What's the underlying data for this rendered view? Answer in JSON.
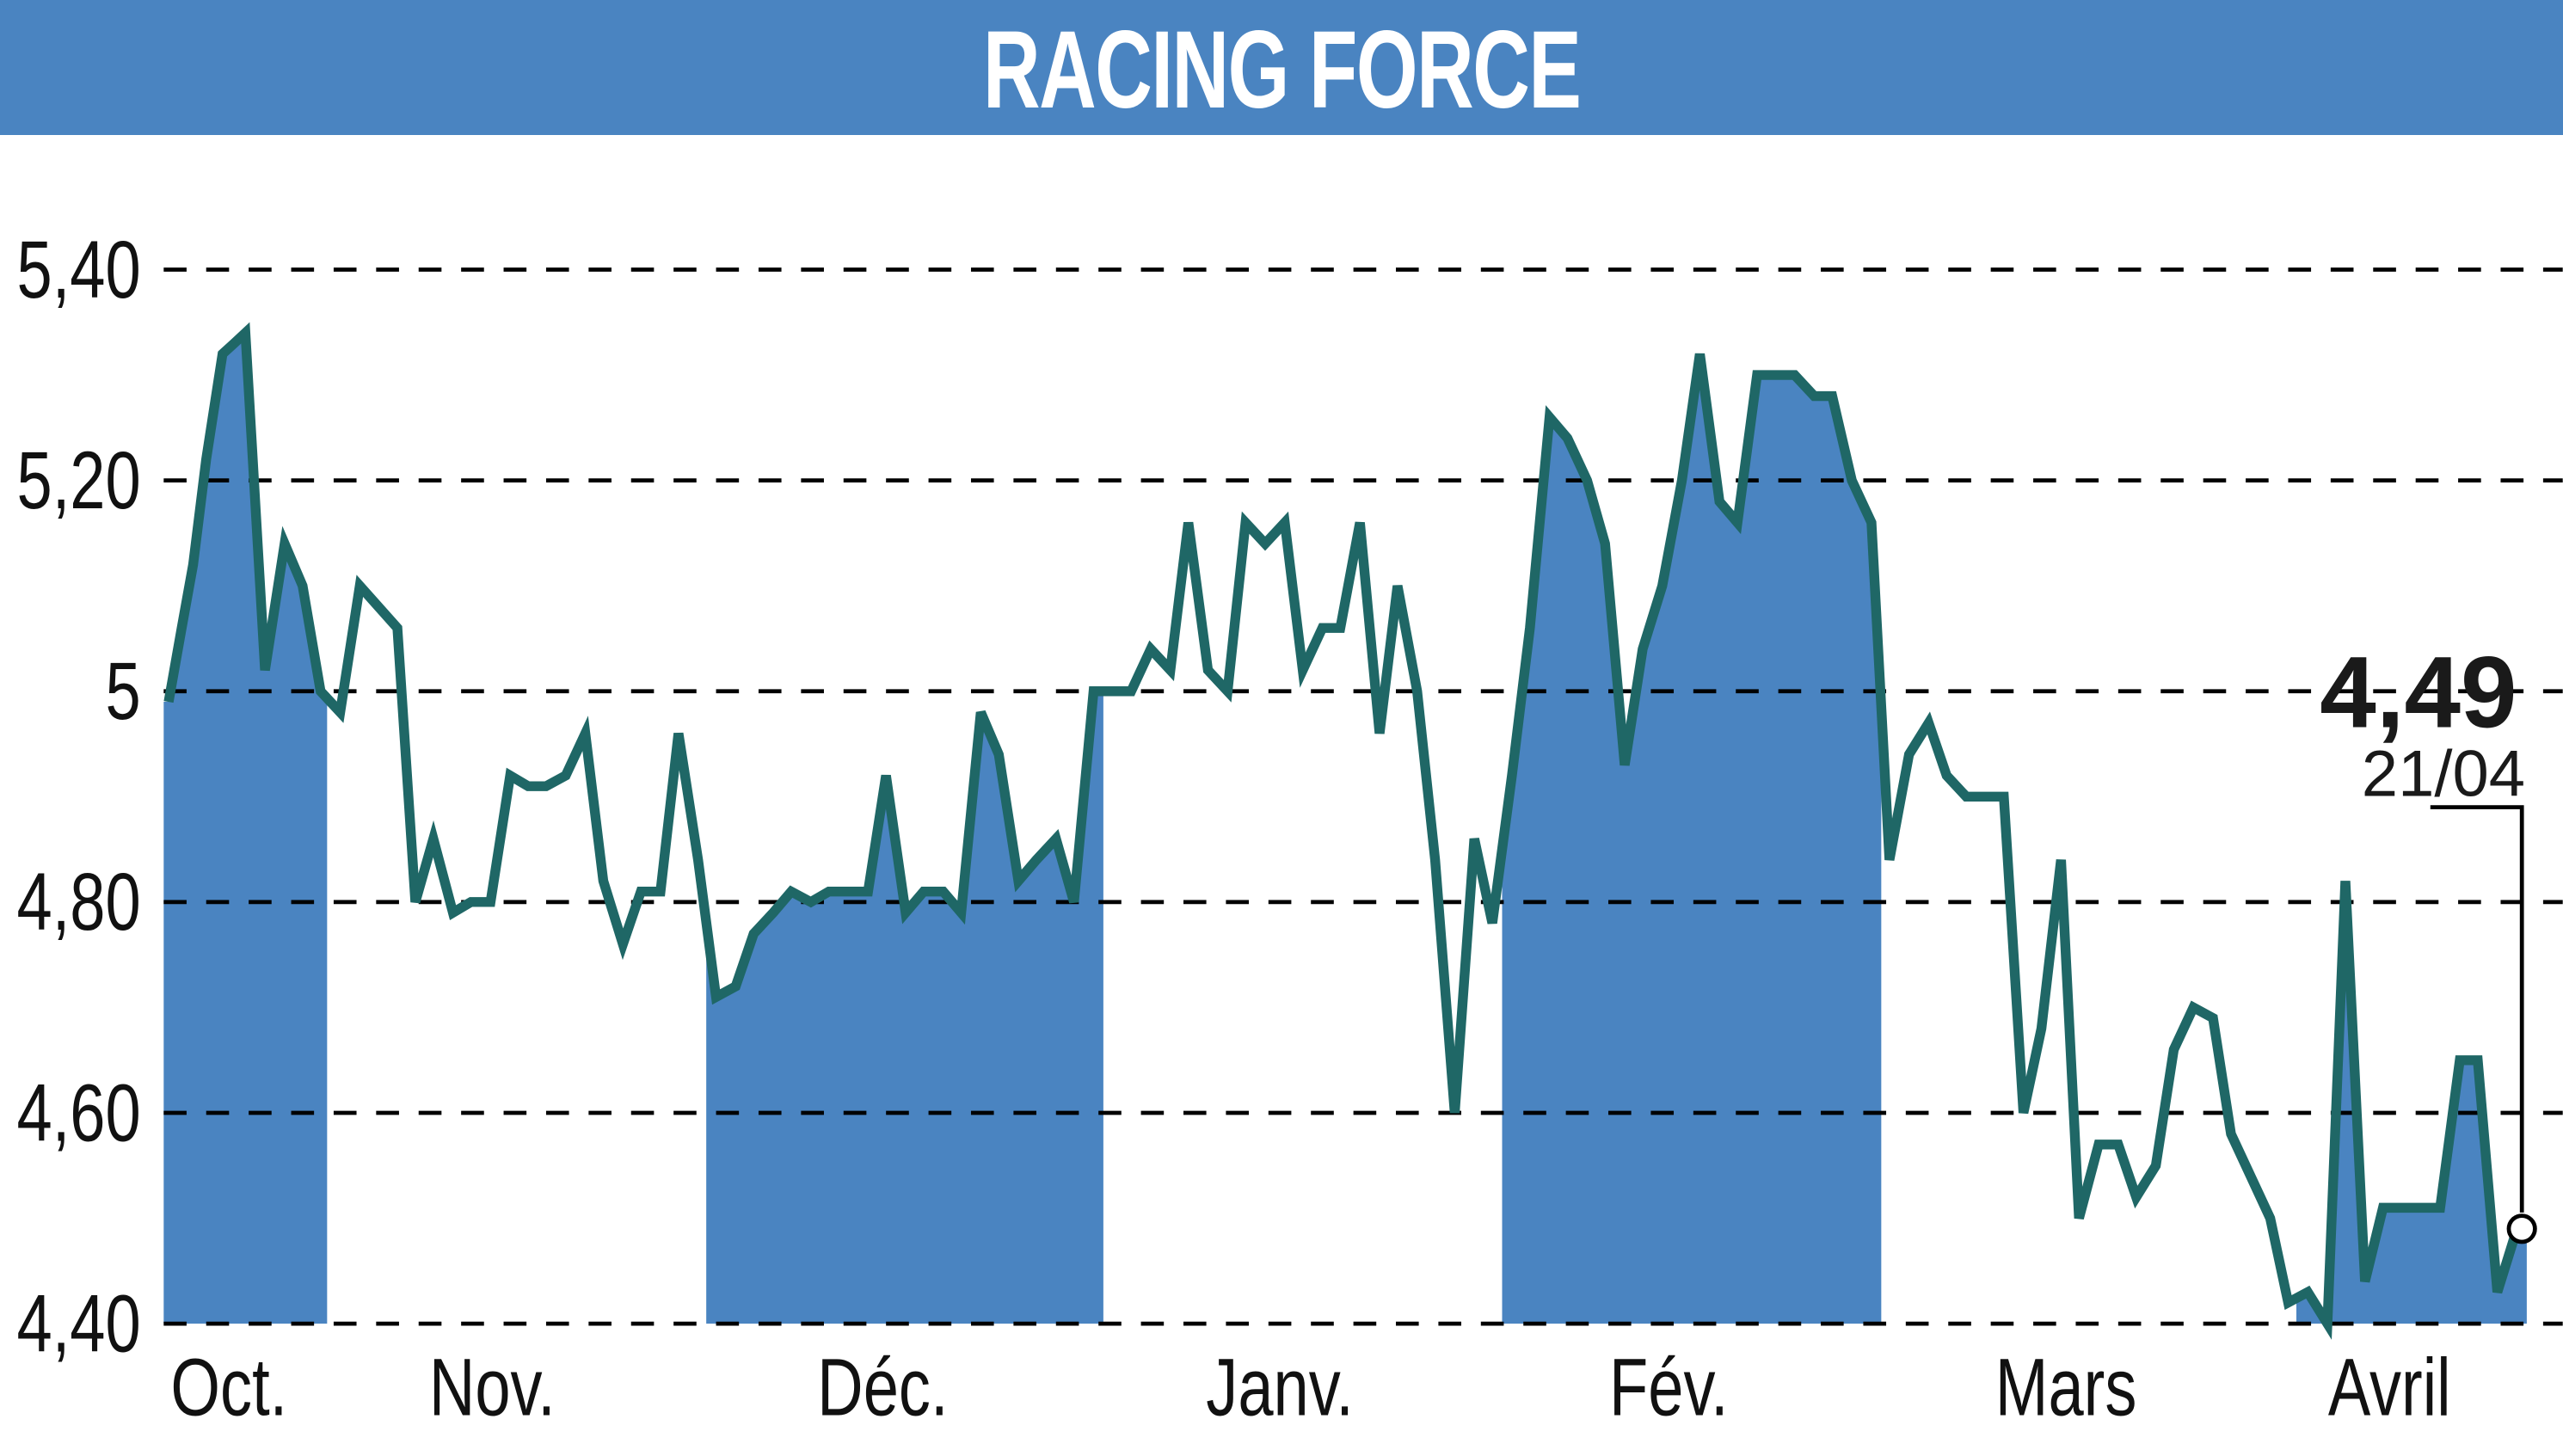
{
  "header": {
    "title": "RACING FORCE"
  },
  "colors": {
    "title_bg": "#4a84c1",
    "fill": "#4a84c1",
    "line": "#1f6766",
    "grid": "#000000"
  },
  "last": {
    "value": "4,49",
    "date": "21/04"
  },
  "chart_data": {
    "type": "line",
    "title": "RACING FORCE",
    "xlabel": "",
    "ylabel": "",
    "ylim": [
      4.4,
      5.4
    ],
    "yticks": [
      "4,40",
      "4,60",
      "4,80",
      "5",
      "5,20",
      "5,40"
    ],
    "ytick_values": [
      4.4,
      4.6,
      4.8,
      5.0,
      5.2,
      5.4
    ],
    "xticks": [
      "Oct.",
      "Nov.",
      "Déc.",
      "Janv.",
      "Fév.",
      "Mars",
      "Avril"
    ],
    "grid": "horizontal dashed",
    "shaded_months": [
      "Oct.",
      "Déc.",
      "Fév.",
      "Avril"
    ],
    "annotation": {
      "value": 4.49,
      "label": "4,49",
      "date": "21/04"
    },
    "series": [
      {
        "name": "Racing Force",
        "x": [
          103,
          111,
          118,
          126,
          136,
          143,
          150,
          162,
          174,
          185,
          196,
          208,
          220,
          243,
          254,
          265,
          277,
          288,
          300,
          312,
          323,
          334,
          346,
          358,
          369,
          381,
          392,
          404,
          415,
          427,
          438,
          450,
          461,
          473,
          484,
          496,
          507,
          519,
          531,
          542,
          554,
          565,
          577,
          588,
          600,
          611,
          623,
          634,
          646,
          657,
          669,
          681,
          692,
          704,
          716,
          727,
          739,
          751,
          762,
          774,
          786,
          797,
          809,
          820,
          832,
          844,
          855,
          867,
          878,
          890,
          902,
          913,
          925,
          936,
          948,
          959,
          971,
          982,
          994,
          1005,
          1017,
          1029,
          1040,
          1052,
          1063,
          1075,
          1087,
          1098,
          1110,
          1121,
          1133,
          1145,
          1156,
          1168,
          1180,
          1191,
          1203,
          1214,
          1226,
          1238,
          1249,
          1261,
          1272,
          1284,
          1296,
          1307,
          1319,
          1330,
          1342,
          1354,
          1365,
          1377,
          1389,
          1400,
          1412,
          1424,
          1435,
          1447,
          1458,
          1470,
          1482,
          1493,
          1505,
          1516,
          1528,
          1540
        ],
        "values": [
          4.99,
          5.06,
          5.12,
          5.22,
          5.32,
          5.33,
          5.34,
          5.02,
          5.14,
          5.1,
          5.0,
          4.98,
          5.1,
          5.06,
          4.8,
          4.86,
          4.79,
          4.8,
          4.8,
          4.92,
          4.91,
          4.91,
          4.92,
          4.96,
          4.82,
          4.76,
          4.81,
          4.81,
          4.96,
          4.84,
          4.71,
          4.72,
          4.77,
          4.79,
          4.81,
          4.8,
          4.81,
          4.81,
          4.81,
          4.92,
          4.79,
          4.81,
          4.81,
          4.79,
          4.98,
          4.94,
          4.82,
          4.84,
          4.86,
          4.8,
          5.0,
          5.0,
          5.0,
          5.04,
          5.02,
          5.16,
          5.02,
          5.0,
          5.16,
          5.14,
          5.16,
          5.02,
          5.06,
          5.06,
          5.16,
          4.96,
          5.1,
          5.0,
          4.84,
          4.6,
          4.86,
          4.78,
          4.92,
          5.06,
          5.26,
          5.24,
          5.2,
          5.14,
          4.93,
          5.04,
          5.1,
          5.2,
          5.32,
          5.18,
          5.16,
          5.3,
          5.3,
          5.3,
          5.28,
          5.28,
          5.2,
          5.16,
          4.84,
          4.94,
          4.97,
          4.92,
          4.9,
          4.9,
          4.9,
          4.6,
          4.68,
          4.84,
          4.5,
          4.57,
          4.57,
          4.52,
          4.55,
          4.66,
          4.7,
          4.69,
          4.58,
          4.54,
          4.5,
          4.42,
          4.43,
          4.4,
          4.82,
          4.44,
          4.51,
          4.51,
          4.51,
          4.51,
          4.65,
          4.65,
          4.43,
          4.49
        ]
      }
    ]
  }
}
